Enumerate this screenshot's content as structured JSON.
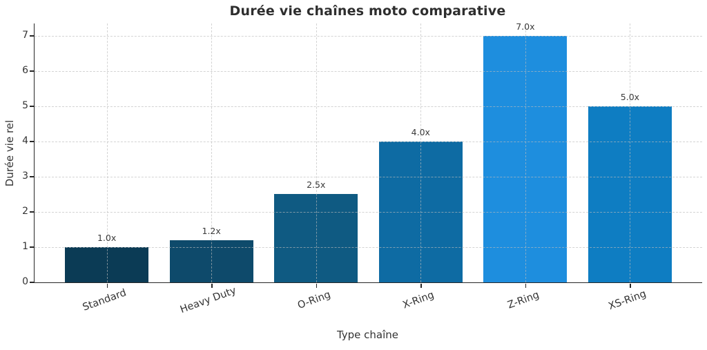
{
  "chart_data": {
    "type": "bar",
    "title": "Durée vie chaînes moto comparative",
    "xlabel": "Type chaîne",
    "ylabel": "Durée vie rel",
    "categories": [
      "Standard",
      "Heavy Duty",
      "O-Ring",
      "X-Ring",
      "Z-Ring",
      "XS-Ring"
    ],
    "values": [
      1.0,
      1.2,
      2.5,
      4.0,
      7.0,
      5.0
    ],
    "value_labels": [
      "1.0x",
      "1.2x",
      "2.5x",
      "4.0x",
      "7.0x",
      "5.0x"
    ],
    "bar_colors": [
      "#0b3b55",
      "#0e4a6b",
      "#0f5a82",
      "#0e6ba3",
      "#1e8ede",
      "#0e7dc2"
    ],
    "yticks": [
      0,
      1,
      2,
      3,
      4,
      5,
      6,
      7
    ],
    "ylim": [
      0,
      7.35
    ],
    "grid": {
      "horizontal": true,
      "vertical": true,
      "style": "dashed",
      "color": "#d9d9d9",
      "drawn_over_bars": true
    },
    "legend": "none",
    "spine_color": "#262626",
    "text_color": "#333333",
    "title_color": "#2e2e2e",
    "background_color": "#ffffff",
    "x_tick_label_rotation_deg": 20
  }
}
